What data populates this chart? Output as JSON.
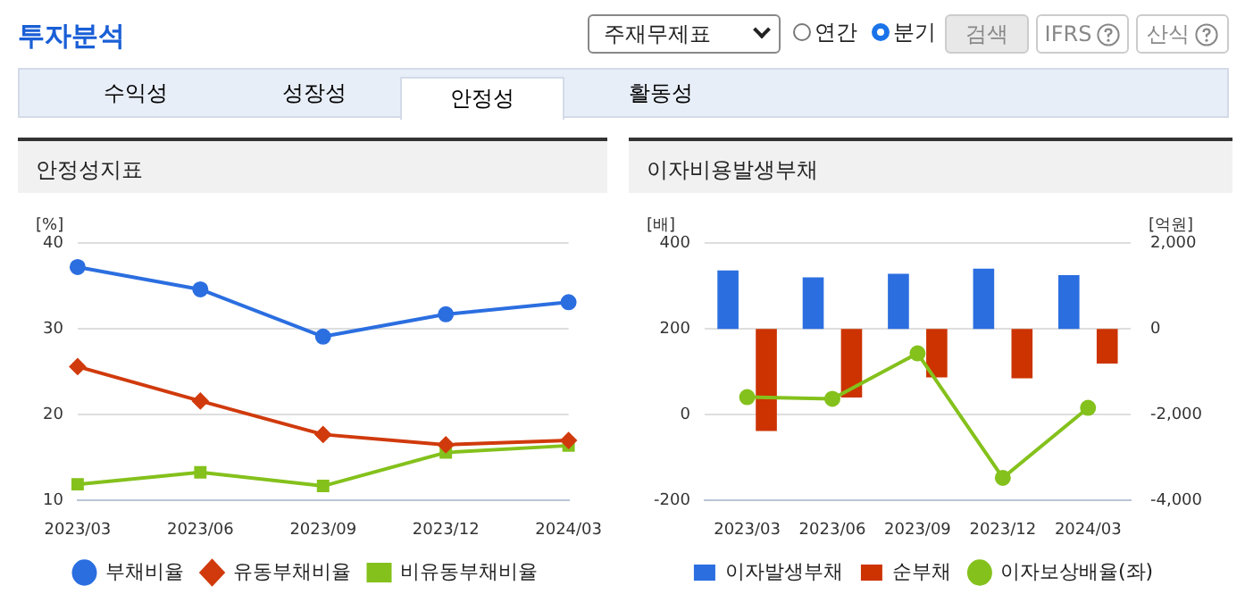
{
  "chart_data": [
    {
      "type": "other",
      "title": "투자분석",
      "annotations": [
        "주재무제표",
        "연간",
        "분기",
        "검색",
        "IFRS",
        "산식",
        "수익성",
        "성장성",
        "안정성",
        "활동성"
      ]
    },
    {
      "type": "line",
      "title": "안정성지표",
      "ylabel": "[%]",
      "categories": [
        "2023/03",
        "2023/06",
        "2023/09",
        "2023/12",
        "2024/03"
      ],
      "ylim": [
        10,
        40
      ],
      "yticks": [
        10,
        20,
        30,
        40
      ],
      "grid": "y",
      "legend": "bottom",
      "series": [
        {
          "name": "부채비율",
          "color": "#2b6ee0",
          "marker": "circle",
          "values": [
            37.2,
            34.6,
            29.1,
            31.7,
            33.1
          ]
        },
        {
          "name": "유동부채비율",
          "color": "#d03a0c",
          "marker": "diamond",
          "values": [
            25.6,
            21.6,
            17.7,
            16.5,
            17.0
          ]
        },
        {
          "name": "비유동부채비율",
          "color": "#84c11c",
          "marker": "square",
          "values": [
            11.9,
            13.3,
            11.7,
            15.6,
            16.4
          ]
        }
      ]
    },
    {
      "type": "bar",
      "title": "이자비용발생부채",
      "ylabel": "[배]",
      "y2label": "[억원]",
      "categories": [
        "2023/03",
        "2023/06",
        "2023/09",
        "2023/12",
        "2024/03"
      ],
      "ylim": [
        -200,
        400
      ],
      "yticks": [
        -200,
        0,
        200,
        400
      ],
      "y2lim": [
        -4000,
        2000
      ],
      "y2ticks": [
        {
          "value": -4000,
          "label": "-4,000"
        },
        {
          "value": -2000,
          "label": "-2,000"
        },
        0,
        {
          "value": 2000,
          "label": "2,000"
        }
      ],
      "grid": "y",
      "legend": "bottom",
      "series": [
        {
          "name": "이자발생부채",
          "color": "#2b6ee0",
          "axis": "y2",
          "values": [
            1360,
            1200,
            1280,
            1400,
            1250
          ]
        },
        {
          "name": "순부채",
          "color": "#cc3300",
          "axis": "y2",
          "values": [
            -2380,
            -1600,
            -1130,
            -1150,
            -810
          ]
        },
        {
          "name": "이자보상배율(좌)",
          "type": "line",
          "color": "#84c11c",
          "marker": "circle",
          "values": [
            41,
            37,
            143,
            -147,
            16
          ]
        }
      ]
    }
  ]
}
